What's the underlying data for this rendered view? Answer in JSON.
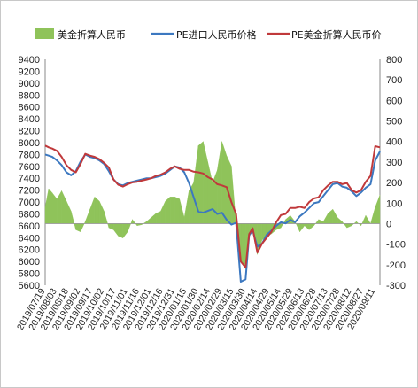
{
  "chart_data": {
    "type": "line",
    "title": "",
    "legend": {
      "placement": "top",
      "entries": [
        "美金折算人民币",
        "PE进口人民币价格",
        "PE美金折算人民币价"
      ]
    },
    "colors": {
      "area": "#8fc35a",
      "blue": "#3c78c0",
      "red": "#c0393b"
    },
    "y_left": {
      "range": [
        5600,
        9400
      ],
      "ticks": [
        "9400",
        "9200",
        "9000",
        "8800",
        "8600",
        "8400",
        "8200",
        "8000",
        "7800",
        "7600",
        "7400",
        "7200",
        "7000",
        "6800",
        "6600",
        "6400",
        "6200",
        "6000",
        "5800",
        "5600"
      ]
    },
    "y_right": {
      "range": [
        -300,
        800
      ],
      "ticks": [
        "800",
        "700",
        "600",
        "500",
        "400",
        "300",
        "200",
        "100",
        "0",
        "-100",
        "-200",
        "-300"
      ]
    },
    "x_labels": [
      "2019/07/19",
      "2019/08/03",
      "2019/08/18",
      "2019/09/02",
      "2019/09/17",
      "2019/10/02",
      "2019/10/17",
      "2019/11/01",
      "2019/11/16",
      "2019/12/01",
      "2019/12/16",
      "2019/12/31",
      "2020/01/15",
      "2020/01/30",
      "2020/02/14",
      "2020/02/29",
      "2020/03/15",
      "2020/03/30",
      "2020/04/14",
      "2020/04/29",
      "2020/05/14",
      "2020/05/29",
      "2020/06/13",
      "2020/06/28",
      "2020/07/13",
      "2020/07/28",
      "2020/08/12",
      "2020/08/27",
      "2020/09/11"
    ],
    "x_label_positions": [
      0,
      1,
      2,
      3,
      4,
      5,
      6,
      7,
      8,
      9,
      10,
      11,
      12,
      13,
      14,
      15,
      16,
      17,
      18,
      19,
      20,
      21,
      22,
      23,
      24,
      25,
      26,
      27,
      28
    ],
    "series": [
      {
        "name": "美金折算人民币",
        "axis": "right",
        "x": [
          0,
          0.3,
          0.6,
          1,
          1.4,
          1.8,
          2.2,
          2.6,
          3,
          3.4,
          3.8,
          4.2,
          4.6,
          5,
          5.4,
          5.8,
          6.2,
          6.6,
          7,
          7.4,
          7.8,
          8.2,
          8.6,
          9,
          9.4,
          9.8,
          10.2,
          10.6,
          11,
          11.4,
          11.8,
          12.2,
          12.6,
          13,
          13.4,
          13.8,
          14.2,
          14.6,
          15,
          15.4,
          15.8,
          16.2,
          16.6,
          17,
          17.3,
          17.6,
          18,
          18.4,
          18.8,
          19.2,
          19.6,
          20,
          20.4,
          20.8,
          21.2,
          21.6,
          22,
          22.4,
          22.8,
          23.2,
          23.6,
          24,
          24.4,
          24.8,
          25.2,
          25.6,
          26,
          26.4,
          26.8,
          27.2,
          27.6,
          28,
          28.4
        ],
        "values": [
          80,
          170,
          150,
          120,
          160,
          110,
          60,
          -30,
          -40,
          10,
          70,
          130,
          110,
          60,
          -20,
          -30,
          -60,
          -70,
          -40,
          20,
          -10,
          -5,
          10,
          30,
          50,
          60,
          110,
          130,
          130,
          120,
          30,
          160,
          200,
          380,
          400,
          300,
          200,
          260,
          400,
          330,
          280,
          0,
          -180,
          -220,
          -40,
          -40,
          -150,
          -80,
          -60,
          -50,
          -30,
          -20,
          20,
          40,
          10,
          -40,
          -10,
          -30,
          -10,
          20,
          10,
          50,
          70,
          30,
          10,
          -20,
          -10,
          10,
          -10,
          40,
          0,
          80,
          140
        ]
      },
      {
        "name": "PE进口人民币价格",
        "axis": "left",
        "x": [
          0,
          0.3,
          0.6,
          1,
          1.4,
          1.8,
          2.2,
          2.6,
          3,
          3.4,
          3.8,
          4.2,
          4.6,
          5,
          5.4,
          5.8,
          6.2,
          6.6,
          7,
          7.4,
          7.8,
          8.2,
          8.6,
          9,
          9.4,
          9.8,
          10.2,
          10.6,
          11,
          11.4,
          11.8,
          12.2,
          12.6,
          13,
          13.4,
          13.8,
          14.2,
          14.6,
          15,
          15.4,
          15.8,
          16.2,
          16.6,
          17,
          17.3,
          17.6,
          18,
          18.4,
          18.8,
          19.2,
          19.6,
          20,
          20.4,
          20.8,
          21.2,
          21.6,
          22,
          22.4,
          22.8,
          23.2,
          23.6,
          24,
          24.4,
          24.8,
          25.2,
          25.6,
          26,
          26.4,
          26.8,
          27.2,
          27.6,
          28,
          28.4
        ],
        "values": [
          7800,
          7780,
          7760,
          7700,
          7620,
          7500,
          7450,
          7520,
          7680,
          7800,
          7760,
          7740,
          7700,
          7640,
          7520,
          7380,
          7300,
          7280,
          7320,
          7340,
          7360,
          7380,
          7400,
          7400,
          7420,
          7440,
          7480,
          7540,
          7600,
          7580,
          7500,
          7320,
          7080,
          6840,
          6820,
          6850,
          6880,
          6800,
          6820,
          6700,
          6620,
          6650,
          5660,
          5700,
          6440,
          6520,
          6250,
          6300,
          6450,
          6520,
          6600,
          6660,
          6640,
          6700,
          6660,
          6760,
          6820,
          6900,
          6980,
          7000,
          7100,
          7200,
          7300,
          7320,
          7260,
          7240,
          7180,
          7100,
          7160,
          7240,
          7300,
          7700,
          7850
        ]
      },
      {
        "name": "PE美金折算人民币价",
        "axis": "left",
        "x": [
          0,
          0.3,
          0.6,
          1,
          1.4,
          1.8,
          2.2,
          2.6,
          3,
          3.4,
          3.8,
          4.2,
          4.6,
          5,
          5.4,
          5.8,
          6.2,
          6.6,
          7,
          7.4,
          7.8,
          8.2,
          8.6,
          9,
          9.4,
          9.8,
          10.2,
          10.6,
          11,
          11.4,
          11.8,
          12.2,
          12.6,
          13,
          13.4,
          13.8,
          14.2,
          14.6,
          15,
          15.4,
          15.8,
          16.2,
          16.6,
          17,
          17.3,
          17.6,
          18,
          18.4,
          18.8,
          19.2,
          19.6,
          20,
          20.4,
          20.8,
          21.2,
          21.6,
          22,
          22.4,
          22.8,
          23.2,
          23.6,
          24,
          24.4,
          24.8,
          25.2,
          25.6,
          26,
          26.4,
          26.8,
          27.2,
          27.6,
          28,
          28.4
        ],
        "values": [
          7950,
          7920,
          7900,
          7860,
          7760,
          7620,
          7540,
          7500,
          7640,
          7810,
          7780,
          7760,
          7720,
          7660,
          7580,
          7380,
          7290,
          7260,
          7300,
          7330,
          7340,
          7360,
          7380,
          7400,
          7440,
          7460,
          7500,
          7560,
          7600,
          7560,
          7540,
          7540,
          7510,
          7500,
          7480,
          7420,
          7380,
          7300,
          7280,
          7250,
          7000,
          6800,
          6000,
          5900,
          6460,
          6560,
          6150,
          6300,
          6400,
          6500,
          6660,
          6780,
          6800,
          6900,
          6900,
          6920,
          6900,
          7000,
          7060,
          7080,
          7200,
          7280,
          7340,
          7340,
          7300,
          7320,
          7200,
          7160,
          7200,
          7340,
          7440,
          7940,
          7920
        ]
      }
    ]
  }
}
